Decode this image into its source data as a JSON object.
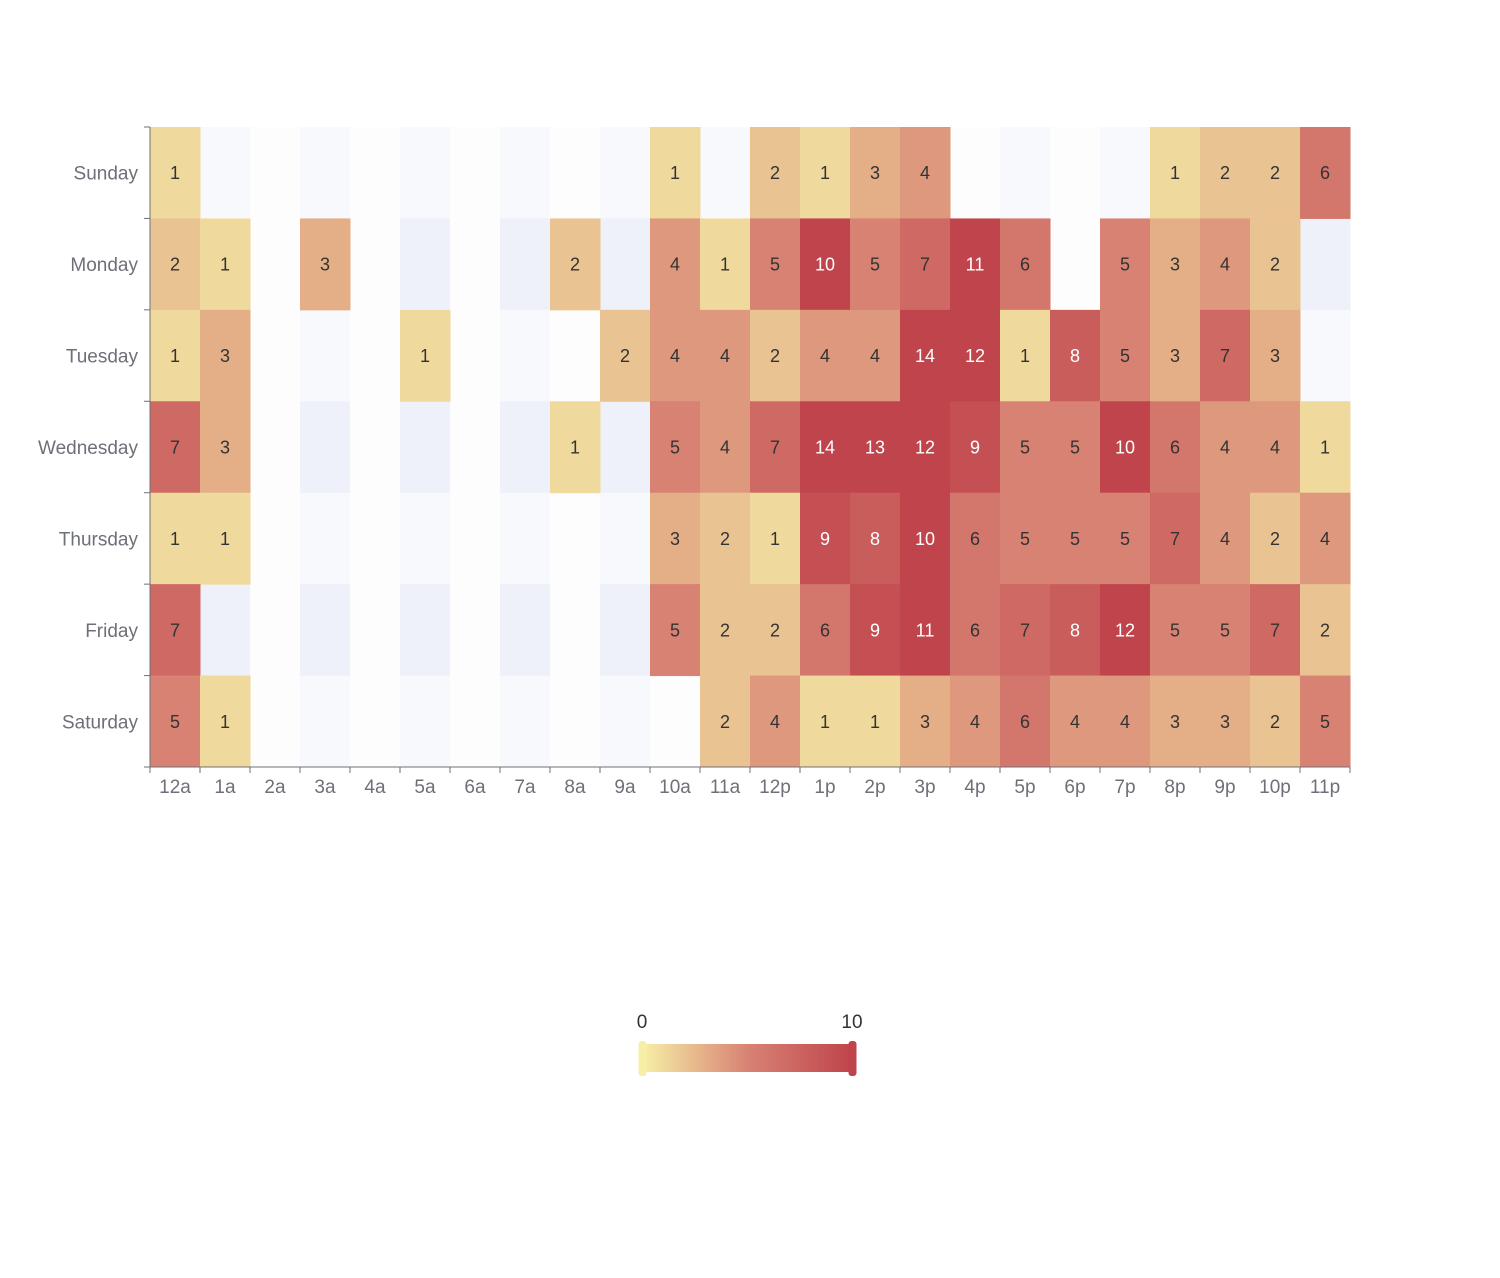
{
  "chart_data": {
    "type": "heatmap",
    "title": "",
    "xlabel": "",
    "ylabel": "",
    "x_categories": [
      "12a",
      "1a",
      "2a",
      "3a",
      "4a",
      "5a",
      "6a",
      "7a",
      "8a",
      "9a",
      "10a",
      "11a",
      "12p",
      "1p",
      "2p",
      "3p",
      "4p",
      "5p",
      "6p",
      "7p",
      "8p",
      "9p",
      "10p",
      "11p"
    ],
    "y_categories": [
      "Sunday",
      "Monday",
      "Tuesday",
      "Wednesday",
      "Thursday",
      "Friday",
      "Saturday"
    ],
    "values": [
      [
        1,
        0,
        0,
        0,
        0,
        0,
        0,
        0,
        0,
        0,
        1,
        0,
        2,
        1,
        3,
        4,
        0,
        0,
        0,
        0,
        1,
        2,
        2,
        6
      ],
      [
        2,
        1,
        0,
        3,
        0,
        0,
        0,
        0,
        2,
        0,
        4,
        1,
        5,
        10,
        5,
        7,
        11,
        6,
        0,
        5,
        3,
        4,
        2,
        0
      ],
      [
        1,
        3,
        0,
        0,
        0,
        1,
        0,
        0,
        0,
        2,
        4,
        4,
        2,
        4,
        4,
        14,
        12,
        1,
        8,
        5,
        3,
        7,
        3,
        0
      ],
      [
        7,
        3,
        0,
        0,
        0,
        0,
        0,
        0,
        1,
        0,
        5,
        4,
        7,
        14,
        13,
        12,
        9,
        5,
        5,
        10,
        6,
        4,
        4,
        1
      ],
      [
        1,
        1,
        0,
        0,
        0,
        0,
        0,
        0,
        0,
        0,
        3,
        2,
        1,
        9,
        8,
        10,
        6,
        5,
        5,
        5,
        7,
        4,
        2,
        4
      ],
      [
        7,
        0,
        0,
        0,
        0,
        0,
        0,
        0,
        0,
        0,
        5,
        2,
        2,
        6,
        9,
        11,
        6,
        7,
        8,
        12,
        5,
        5,
        7,
        2
      ],
      [
        5,
        1,
        0,
        0,
        0,
        0,
        0,
        0,
        0,
        0,
        0,
        2,
        4,
        1,
        1,
        3,
        4,
        6,
        4,
        4,
        3,
        3,
        2,
        5
      ]
    ],
    "show_zero_labels": false,
    "visual_map": {
      "min": 0,
      "max": 10,
      "min_label": "0",
      "max_label": "10",
      "placement": "bottom-center",
      "colors": [
        "#f6efa6",
        "#d88273",
        "#bf444c"
      ]
    },
    "split_area_colors": [
      "#f8f9fc",
      "#fdfdfd"
    ],
    "alt_split_colors": [
      "#f5f7fb",
      "#eef1fa"
    ]
  }
}
